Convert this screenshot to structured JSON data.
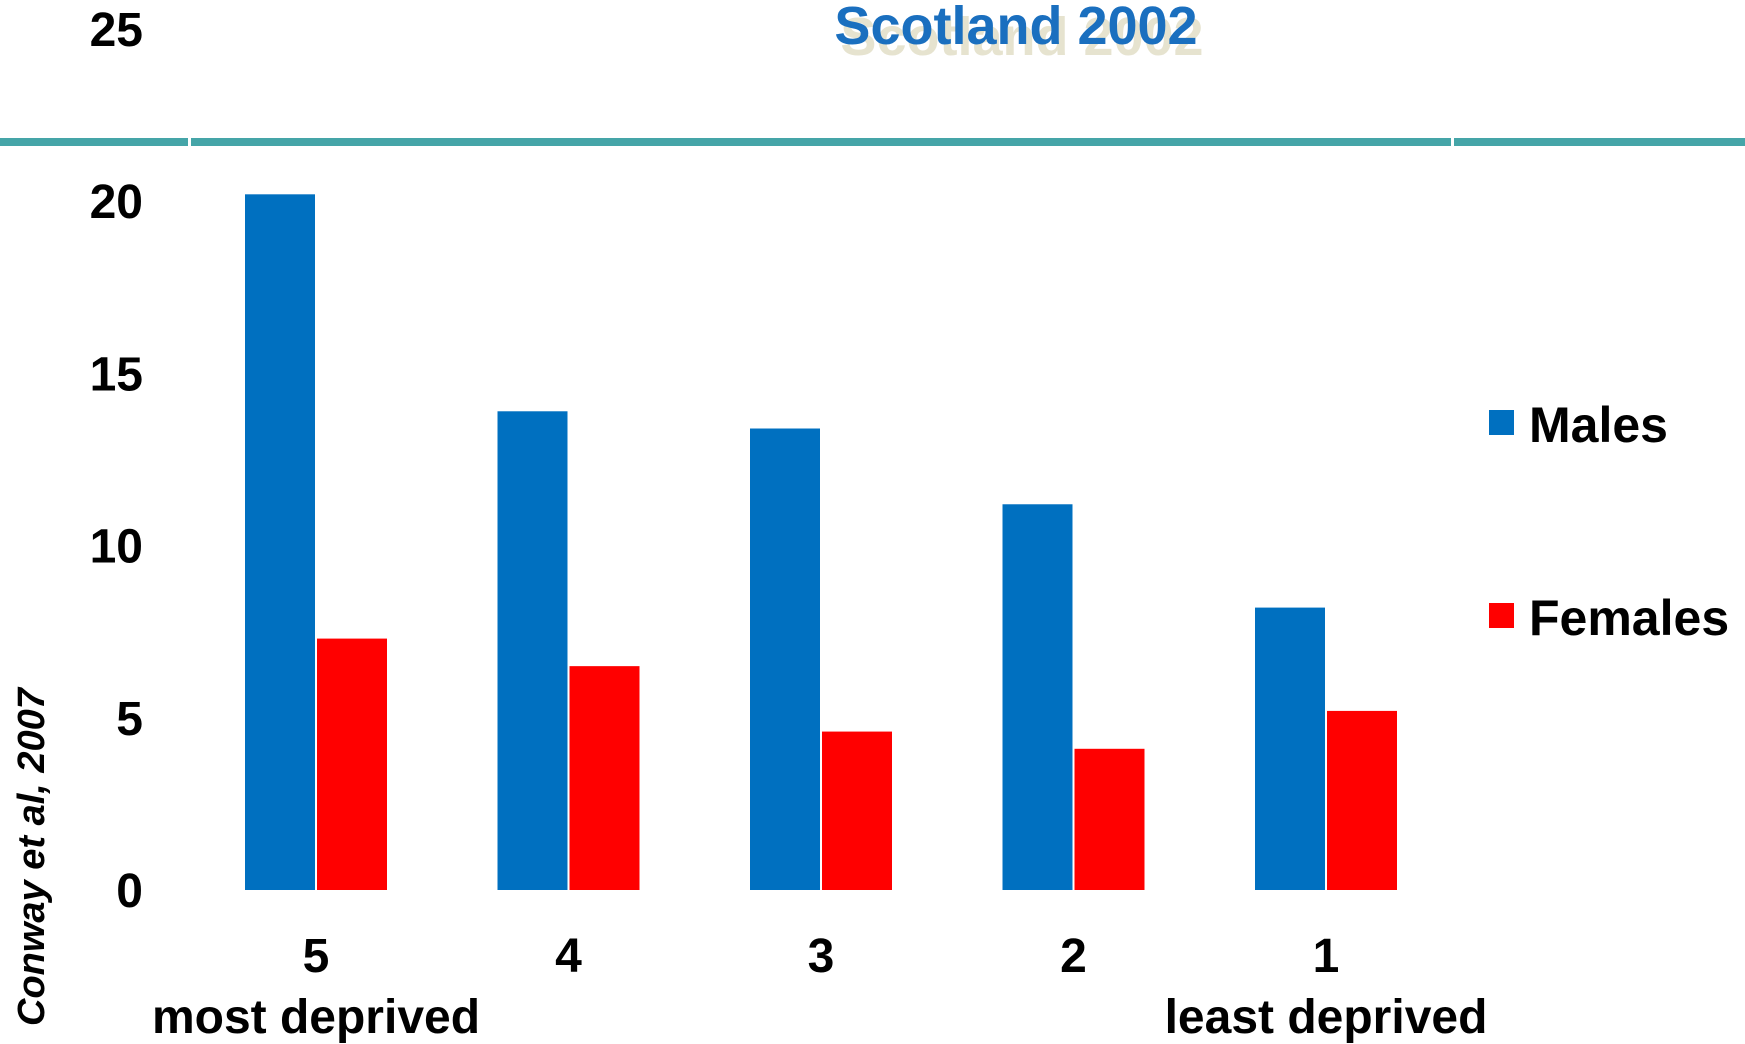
{
  "colors": {
    "title": "#1a6fbf",
    "title_shadow": "#e6e3cf",
    "divider": "#45a5a8",
    "males": "#0070c0",
    "females": "#ff0000"
  },
  "credit": "Conway et al, 2007",
  "chart_data": {
    "type": "bar",
    "title": "Scotland 2002",
    "xlabel": "",
    "ylabel": "",
    "categories": [
      "5",
      "4",
      "3",
      "2",
      "1"
    ],
    "category_sublabels": [
      "most deprived",
      "",
      "",
      "",
      "least deprived"
    ],
    "series": [
      {
        "name": "Males",
        "values": [
          20.2,
          13.9,
          13.4,
          11.2,
          8.2
        ]
      },
      {
        "name": "Females",
        "values": [
          7.3,
          6.5,
          4.6,
          4.1,
          5.2
        ]
      }
    ],
    "ylim": [
      0,
      25
    ],
    "yticks": [
      "0",
      "5",
      "10",
      "15",
      "20",
      "25"
    ],
    "grid": false,
    "legend": "right"
  }
}
